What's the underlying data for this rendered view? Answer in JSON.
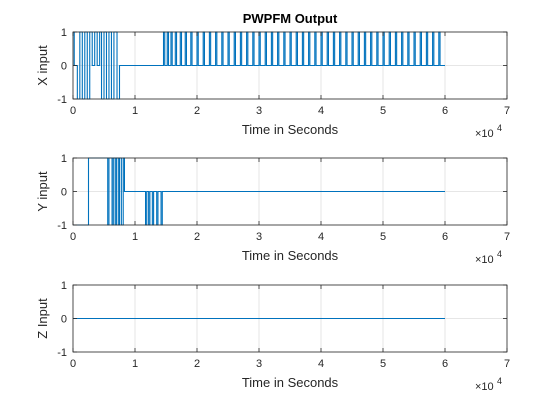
{
  "figure_title": "PWPFM Output",
  "colors": {
    "line": "#0072BD",
    "grid": "#e6e6e6",
    "axis": "#262626"
  },
  "x_exponent_label": "×10",
  "x_exponent_power": "4",
  "chart_data": [
    {
      "type": "line",
      "title": "PWPFM Output",
      "xlabel": "Time in Seconds",
      "ylabel": "X input",
      "xlim": [
        0,
        70000
      ],
      "ylim": [
        -1,
        1
      ],
      "xticks": [
        0,
        10000,
        20000,
        30000,
        40000,
        50000,
        60000,
        70000
      ],
      "xtick_labels": [
        "0",
        "1",
        "2",
        "3",
        "4",
        "5",
        "6",
        "7"
      ],
      "yticks": [
        -1,
        0,
        1
      ],
      "ytick_labels": [
        "-1",
        "0",
        "1"
      ],
      "grid": true,
      "series": [
        {
          "x": [
            0,
            200,
            200,
            700,
            700,
            1100,
            1100,
            1500,
            1500,
            1900,
            1900,
            2300,
            2300,
            2700,
            2700,
            3100,
            3100,
            3500,
            3500,
            3900,
            3900,
            4300,
            4300,
            4600,
            4600,
            5000,
            5000,
            5400,
            5400,
            5800,
            5800,
            6200,
            6200,
            6600,
            6600,
            7100,
            7100,
            7500,
            7500,
            14600,
            14600,
            14800,
            14800,
            15200,
            15200,
            15400,
            15400,
            15800,
            15800,
            16000,
            16000,
            16500,
            16500,
            16700,
            16700,
            17300,
            17300,
            17500,
            17500,
            18100,
            18100,
            18300,
            18300,
            19000,
            19000,
            19200,
            19200,
            20000,
            20000,
            20200,
            20200,
            21000,
            21000,
            21200,
            21200,
            22000,
            22000,
            22200,
            22200,
            23000,
            23000,
            23200,
            23200,
            24000,
            24000,
            24200,
            24200,
            25000,
            25000,
            25200,
            25200,
            26000,
            26000,
            26200,
            26200,
            27000,
            27000,
            27200,
            27200,
            28000,
            28000,
            28200,
            28200,
            29000,
            29000,
            29200,
            29200,
            30000,
            30000,
            30200,
            30200,
            31000,
            31000,
            31200,
            31200,
            32000,
            32000,
            32200,
            32200,
            33000,
            33000,
            33200,
            33200,
            34000,
            34000,
            34200,
            34200,
            35000,
            35000,
            35200,
            35200,
            36000,
            36000,
            36200,
            36200,
            37000,
            37000,
            37200,
            37200,
            38000,
            38000,
            38200,
            38200,
            39000,
            39000,
            39200,
            39200,
            40000,
            40000,
            40200,
            40200,
            41000,
            41000,
            41200,
            41200,
            42000,
            42000,
            42200,
            42200,
            43000,
            43000,
            43200,
            43200,
            44000,
            44000,
            44200,
            44200,
            45000,
            45000,
            45200,
            45200,
            46000,
            46000,
            46200,
            46200,
            47000,
            47000,
            47200,
            47200,
            48000,
            48000,
            48200,
            48200,
            49000,
            49000,
            49200,
            49200,
            50000,
            50000,
            50200,
            50200,
            51000,
            51000,
            51200,
            51200,
            52000,
            52000,
            52200,
            52200,
            53000,
            53000,
            53200,
            53200,
            54000,
            54000,
            54200,
            54200,
            55000,
            55000,
            55200,
            55200,
            56000,
            56000,
            56200,
            56200,
            57000,
            57000,
            57200,
            57200,
            58000,
            58000,
            58200,
            58200,
            59000,
            59000,
            59200,
            59200,
            60000
          ],
          "y": [
            1,
            1,
            0,
            0,
            -1,
            -1,
            1,
            1,
            -1,
            -1,
            1,
            1,
            -1,
            -1,
            1,
            1,
            0,
            0,
            1,
            1,
            0,
            0,
            1,
            1,
            -1,
            -1,
            1,
            1,
            -1,
            -1,
            1,
            1,
            -1,
            -1,
            1,
            1,
            -1,
            -1,
            0,
            0,
            1,
            1,
            0,
            0,
            1,
            1,
            0,
            0,
            1,
            1,
            0,
            0,
            1,
            1,
            0,
            0,
            1,
            1,
            0,
            0,
            1,
            1,
            0,
            0,
            1,
            1,
            0,
            0,
            1,
            1,
            0,
            0,
            1,
            1,
            0,
            0,
            1,
            1,
            0,
            0,
            1,
            1,
            0,
            0,
            1,
            1,
            0,
            0,
            1,
            1,
            0,
            0,
            1,
            1,
            0,
            0,
            1,
            1,
            0,
            0,
            1,
            1,
            0,
            0,
            1,
            1,
            0,
            0,
            1,
            1,
            0,
            0,
            1,
            1,
            0,
            0,
            1,
            1,
            0,
            0,
            1,
            1,
            0,
            0,
            1,
            1,
            0,
            0,
            1,
            1,
            0,
            0,
            1,
            1,
            0,
            0,
            1,
            1,
            0,
            0,
            1,
            1,
            0,
            0,
            1,
            1,
            0,
            0,
            1,
            1,
            0,
            0,
            1,
            1,
            0,
            0,
            1,
            1,
            0,
            0,
            1,
            1,
            0,
            0,
            1,
            1,
            0,
            0,
            1,
            1,
            0,
            0,
            1,
            1,
            0,
            0,
            1,
            1,
            0,
            0,
            1,
            1,
            0,
            0,
            1,
            1,
            0,
            0,
            1,
            1,
            0,
            0,
            1,
            1,
            0,
            0,
            1,
            1,
            0,
            0,
            1,
            1,
            0,
            0,
            1,
            1,
            0,
            0,
            1,
            1,
            0,
            0,
            1,
            1,
            0,
            0,
            1,
            1,
            0,
            0,
            1,
            1,
            0,
            0,
            1,
            1,
            0,
            0
          ]
        }
      ]
    },
    {
      "type": "line",
      "xlabel": "Time in Seconds",
      "ylabel": "Y input",
      "xlim": [
        0,
        70000
      ],
      "ylim": [
        -1,
        1
      ],
      "xticks": [
        0,
        10000,
        20000,
        30000,
        40000,
        50000,
        60000,
        70000
      ],
      "xtick_labels": [
        "0",
        "1",
        "2",
        "3",
        "4",
        "5",
        "6",
        "7"
      ],
      "yticks": [
        -1,
        0,
        1
      ],
      "ytick_labels": [
        "-1",
        "0",
        "1"
      ],
      "grid": true,
      "series": [
        {
          "x": [
            0,
            2500,
            2500,
            5600,
            5600,
            5800,
            5800,
            6300,
            6300,
            6500,
            6500,
            6800,
            6800,
            7000,
            7000,
            7300,
            7300,
            7500,
            7500,
            7800,
            7800,
            8100,
            8100,
            8300,
            8300,
            11700,
            11700,
            11900,
            11900,
            12200,
            12200,
            12400,
            12400,
            12800,
            12800,
            13000,
            13000,
            13500,
            13500,
            13700,
            13700,
            14200,
            14200,
            14400,
            14400,
            60000
          ],
          "y": [
            -1,
            -1,
            1,
            1,
            -1,
            -1,
            1,
            1,
            -1,
            -1,
            1,
            1,
            -1,
            -1,
            1,
            1,
            -1,
            -1,
            1,
            1,
            -1,
            -1,
            1,
            1,
            0,
            0,
            -1,
            -1,
            0,
            0,
            -1,
            -1,
            0,
            0,
            -1,
            -1,
            0,
            0,
            -1,
            -1,
            0,
            0,
            -1,
            -1,
            0,
            0
          ]
        }
      ]
    },
    {
      "type": "line",
      "xlabel": "Time in Seconds",
      "ylabel": "Z Input",
      "xlim": [
        0,
        70000
      ],
      "ylim": [
        -1,
        1
      ],
      "xticks": [
        0,
        10000,
        20000,
        30000,
        40000,
        50000,
        60000,
        70000
      ],
      "xtick_labels": [
        "0",
        "1",
        "2",
        "3",
        "4",
        "5",
        "6",
        "7"
      ],
      "yticks": [
        -1,
        0,
        1
      ],
      "ytick_labels": [
        "-1",
        "0",
        "1"
      ],
      "grid": true,
      "series": [
        {
          "x": [
            0,
            60000
          ],
          "y": [
            0,
            0
          ]
        }
      ]
    }
  ]
}
